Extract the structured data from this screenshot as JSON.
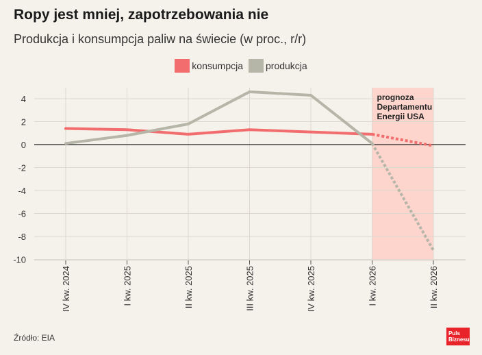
{
  "title": "Ropy jest mniej, zapotrzebowania nie",
  "subtitle": "Produkcja i konsumpcja paliw na świecie (w proc., r/r)",
  "source": "Źródło: EIA",
  "logo": {
    "line1": "Puls",
    "line2": "Biznesu"
  },
  "colors": {
    "konsumpcja": "#f26d6d",
    "produkcja": "#b5b5a8",
    "forecast_band": "#fdd5cd",
    "background": "#f5f2eb"
  },
  "chart_data": {
    "type": "line",
    "categories": [
      "IV kw. 2024",
      "I kw. 2025",
      "II kw. 2025",
      "III kw. 2025",
      "IV kw. 2025",
      "I kw. 2026",
      "II kw. 2026"
    ],
    "series": [
      {
        "name": "konsumpcja",
        "values": [
          1.4,
          1.3,
          0.9,
          1.3,
          1.1,
          0.9,
          -0.1
        ]
      },
      {
        "name": "produkcja",
        "values": [
          0.1,
          0.8,
          1.8,
          4.6,
          4.3,
          0.1,
          -9.2
        ]
      }
    ],
    "forecast_from_index": 5,
    "forecast_label": [
      "prognoza",
      "Departamentu",
      "Energii USA"
    ],
    "ylim": [
      -10,
      5
    ],
    "yticks": [
      4,
      2,
      0,
      -2,
      -4,
      -6,
      -8,
      -10
    ],
    "legend_position": "top-center",
    "grid": true
  }
}
